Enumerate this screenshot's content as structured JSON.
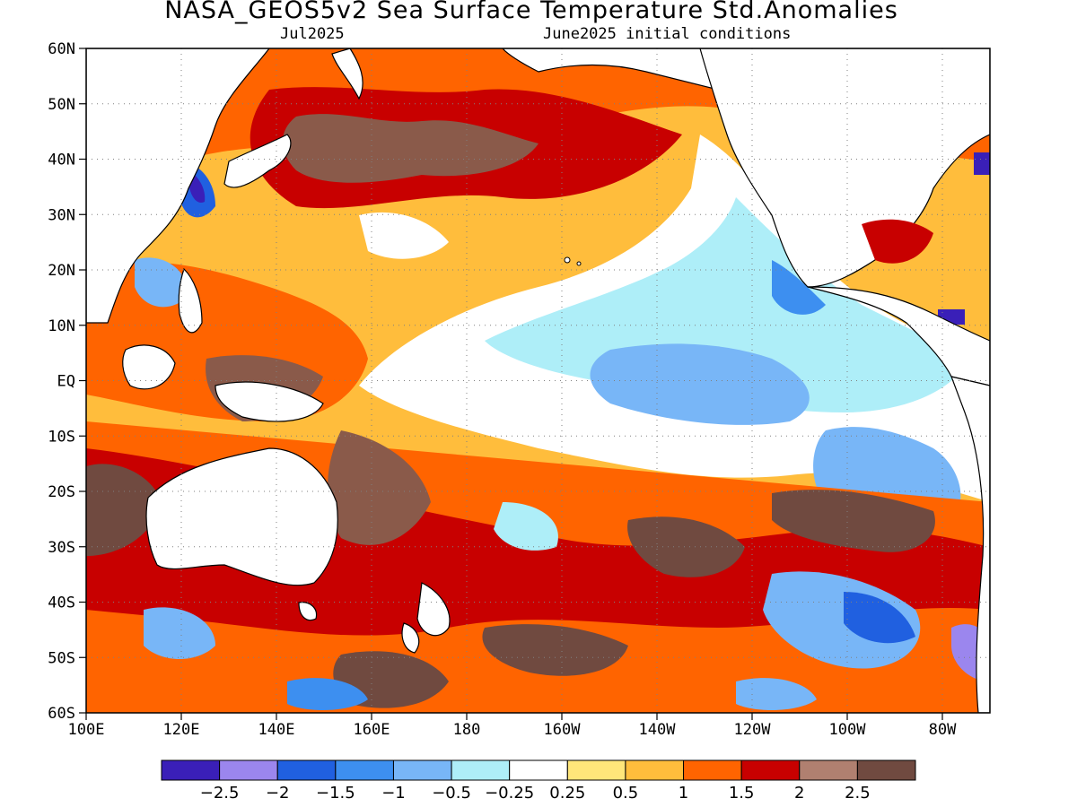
{
  "title": "NASA_GEOS5v2 Sea Surface Temperature Std.Anomalies",
  "subtitle_left": "Jul2025",
  "subtitle_right": "June2025 initial conditions",
  "map": {
    "lon_range": [
      100,
      290
    ],
    "lat_range": [
      -60,
      60
    ],
    "lat_labels": [
      "60N",
      "50N",
      "40N",
      "30N",
      "20N",
      "10N",
      "EQ",
      "10S",
      "20S",
      "30S",
      "40S",
      "50S",
      "60S"
    ],
    "lon_labels": [
      "100E",
      "120E",
      "140E",
      "160E",
      "180",
      "160W",
      "140W",
      "120W",
      "100W",
      "80W"
    ],
    "grid": "dotted"
  },
  "colorbar": {
    "colors": [
      "#3a1fb8",
      "#9b86ee",
      "#2060e0",
      "#3d8ff0",
      "#78b6f7",
      "#aeeef8",
      "#ffffff",
      "#ffe67a",
      "#ffbd3c",
      "#ff6400",
      "#c80000",
      "#b08070",
      "#704a40"
    ],
    "labels": [
      "−2.5",
      "−2",
      "−1.5",
      "−1",
      "−0.5",
      "−0.25",
      "0.25",
      "0.5",
      "1",
      "1.5",
      "2",
      "2.5"
    ]
  }
}
